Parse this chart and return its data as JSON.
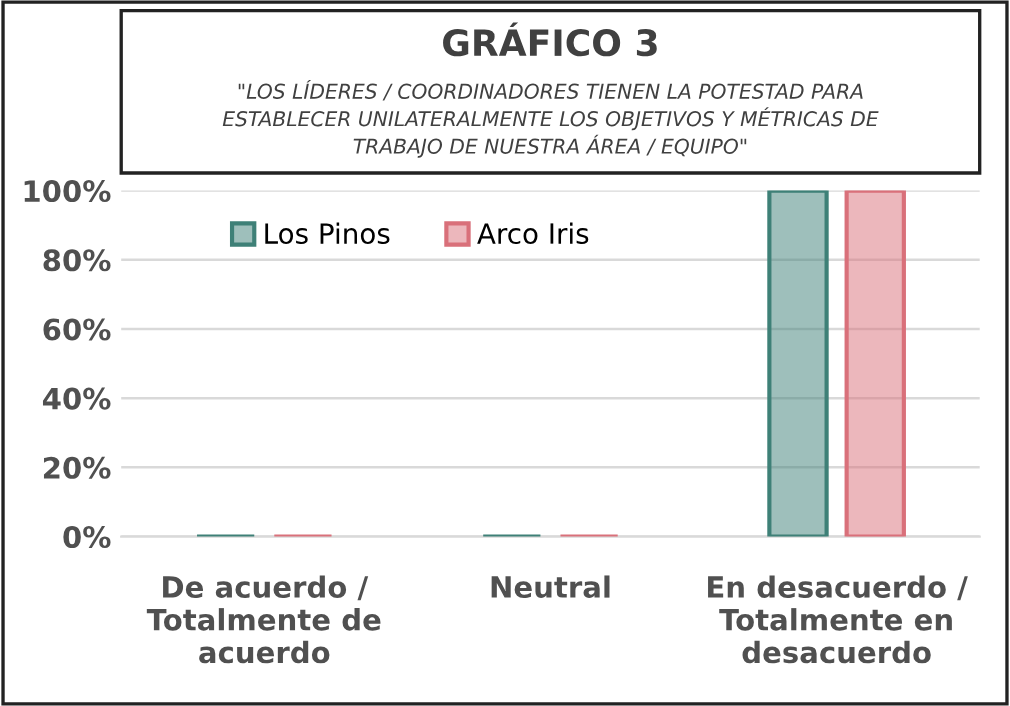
{
  "chart_data": {
    "type": "bar",
    "title": "GRÁFICO 3",
    "subtitle": "\"LOS LÍDERES / COORDINADORES TIENEN LA POTESTAD PARA\nESTABLECER UNILATERALMENTE LOS OBJETIVOS Y MÉTRICAS DE\nTRABAJO DE NUESTRA ÁREA / EQUIPO\"",
    "categories": [
      "De acuerdo /\nTotalmente de\nacuerdo",
      "Neutral",
      "En desacuerdo /\nTotalmente en\ndesacuerdo"
    ],
    "series": [
      {
        "name": "Los Pinos",
        "color": "#3e8077",
        "values": [
          0,
          0,
          100
        ]
      },
      {
        "name": "Arco Iris",
        "color": "#d9707a",
        "values": [
          0,
          0,
          100
        ]
      }
    ],
    "ylim": [
      0,
      100
    ],
    "yticks": [
      {
        "value": 0,
        "label": "0%"
      },
      {
        "value": 20,
        "label": "20%"
      },
      {
        "value": 40,
        "label": "40%"
      },
      {
        "value": 60,
        "label": "60%"
      },
      {
        "value": 80,
        "label": "80%"
      },
      {
        "value": 100,
        "label": "100%"
      }
    ],
    "grid": "y",
    "legend": "top left"
  }
}
